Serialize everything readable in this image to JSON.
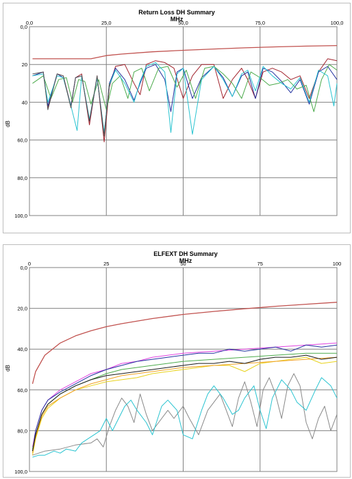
{
  "chart_data": [
    {
      "type": "line",
      "title": "Return Loss DH Summary",
      "xlabel": "MHz",
      "ylabel": "dB",
      "x_ticks": [
        "0,0",
        "25,0",
        "50,0",
        "75,0",
        "100,0"
      ],
      "y_ticks": [
        "0,0",
        "20",
        "40",
        "60,0",
        "80,0",
        "100,0"
      ],
      "xlim": [
        0,
        100
      ],
      "ylim": [
        0,
        100
      ],
      "x_axis_position": "top",
      "y_inverted": true,
      "grid": true,
      "limit": {
        "name": "limit",
        "color": "#c0504d",
        "x": [
          1,
          10,
          20,
          25,
          30,
          40,
          50,
          60,
          70,
          80,
          90,
          100
        ],
        "y": [
          17,
          17,
          17,
          15.3,
          14.5,
          13.3,
          12.5,
          11.8,
          11.2,
          10.7,
          10.3,
          10
        ]
      },
      "series": [
        {
          "color": "#a0202a",
          "x": [
            1,
            4.5,
            6,
            9,
            11,
            13.5,
            15,
            17,
            19.5,
            22,
            24.3,
            26,
            28,
            31,
            34,
            36,
            38,
            41,
            44,
            47,
            50,
            53,
            56,
            60,
            63,
            66,
            69,
            71,
            73.5,
            76,
            79,
            82,
            85,
            88,
            91,
            94,
            97,
            100
          ],
          "y": [
            26,
            24,
            43,
            25,
            26,
            42,
            27,
            25,
            52,
            26,
            61,
            32,
            21,
            20,
            30,
            36,
            20,
            18,
            19,
            22,
            38,
            26,
            20,
            20,
            38,
            28,
            22,
            28,
            38,
            24,
            22,
            24,
            28,
            26,
            38,
            24,
            17,
            18
          ]
        },
        {
          "color": "#1f2f9e",
          "x": [
            1,
            4.5,
            6,
            9,
            11,
            13.5,
            15,
            17,
            19.5,
            22,
            24.3,
            26,
            28,
            31,
            34,
            36,
            38,
            41,
            44,
            46,
            48,
            50,
            53,
            56,
            60,
            63,
            66,
            69,
            71,
            73.5,
            76,
            79,
            82,
            85,
            88,
            91,
            94,
            97,
            100
          ],
          "y": [
            26,
            24,
            42,
            25,
            27,
            42,
            27,
            26,
            50,
            27,
            57,
            30,
            22,
            28,
            39,
            30,
            22,
            20,
            28,
            45,
            24,
            22,
            38,
            27,
            21,
            27,
            37,
            26,
            24,
            38,
            22,
            24,
            29,
            35,
            28,
            41,
            24,
            21,
            28
          ]
        },
        {
          "color": "#4aaa4a",
          "x": [
            1,
            4.5,
            7,
            9.5,
            12,
            14,
            16,
            18,
            20,
            22.5,
            25,
            27,
            29.5,
            32,
            34,
            36.5,
            39,
            42,
            45,
            48,
            51,
            54,
            57,
            60,
            63,
            66,
            69,
            72,
            75,
            78,
            81,
            84,
            87,
            90,
            92.5,
            95,
            97.5,
            100
          ],
          "y": [
            30,
            26,
            38,
            28,
            27,
            40,
            28,
            29,
            41,
            28,
            44,
            30,
            26,
            38,
            24,
            22,
            34,
            22,
            21,
            32,
            23,
            38,
            22,
            21,
            25,
            30,
            38,
            24,
            27,
            31,
            30,
            28,
            33,
            31,
            45,
            28,
            20,
            23
          ]
        },
        {
          "color": "#27c3d0",
          "x": [
            1,
            4.5,
            6,
            9,
            11,
            13.5,
            15.5,
            17,
            19.5,
            22,
            24.3,
            26,
            28,
            31,
            34,
            36,
            38,
            41,
            44,
            46,
            48,
            50,
            53,
            56,
            60,
            63,
            66,
            69,
            71,
            73.5,
            76,
            79,
            82,
            85,
            88,
            91,
            94,
            97,
            99,
            100
          ],
          "y": [
            26,
            25,
            40,
            26,
            27,
            42,
            55,
            26,
            49,
            27,
            56,
            31,
            23,
            30,
            40,
            29,
            21,
            19,
            24,
            56,
            25,
            22,
            57,
            28,
            21,
            28,
            37,
            25,
            23,
            34,
            21,
            26,
            30,
            33,
            27,
            40,
            23,
            26,
            42,
            30
          ]
        },
        {
          "color": "#555555",
          "x": [
            1,
            4.5,
            6,
            9,
            11,
            13.5,
            15,
            17,
            19.5,
            22,
            24.3,
            26
          ],
          "y": [
            25,
            24,
            44,
            25,
            26,
            43,
            27,
            26,
            50,
            26,
            58,
            30
          ]
        }
      ]
    },
    {
      "type": "line",
      "title": "ELFEXT DH Summary",
      "xlabel": "MHz",
      "ylabel": "dB",
      "x_ticks": [
        "0",
        "25",
        "50",
        "75",
        "100"
      ],
      "y_ticks": [
        "0,0",
        "20,0",
        "40,0",
        "60,0",
        "80,0",
        "100,0"
      ],
      "xlim": [
        0,
        100
      ],
      "ylim": [
        0,
        100
      ],
      "x_axis_position": "top",
      "y_inverted": true,
      "grid": true,
      "limit": {
        "name": "limit",
        "color": "#c0504d",
        "x": [
          1,
          2,
          5,
          10,
          15,
          20,
          25,
          30,
          40,
          50,
          60,
          70,
          80,
          90,
          100
        ],
        "y": [
          57,
          51,
          43,
          37,
          33.5,
          31,
          29,
          27.5,
          25,
          23,
          21.5,
          20.2,
          19,
          18,
          17
        ]
      },
      "series": [
        {
          "color": "#e040e0",
          "x": [
            1,
            2,
            4,
            6,
            10,
            15,
            20,
            25,
            30,
            35,
            40,
            50,
            60,
            70,
            80,
            90,
            100
          ],
          "y": [
            88,
            80,
            70,
            65,
            60,
            56,
            52,
            50,
            47,
            46,
            44,
            42,
            41,
            40,
            39,
            38,
            37
          ]
        },
        {
          "color": "#1f2f9e",
          "x": [
            1,
            2,
            4,
            6,
            10,
            15,
            20,
            25,
            30,
            35,
            40,
            45,
            50,
            55,
            60,
            65,
            70,
            75,
            80,
            85,
            90,
            95,
            100
          ],
          "y": [
            90,
            80,
            70,
            65,
            61,
            57,
            53,
            50,
            48,
            46,
            45,
            44,
            43,
            42,
            42,
            40,
            41,
            40,
            39,
            41,
            38,
            39,
            38
          ]
        },
        {
          "color": "#4aaa4a",
          "x": [
            1,
            2,
            4,
            6,
            10,
            15,
            20,
            25,
            30,
            35,
            40,
            50,
            60,
            70,
            80,
            90,
            100
          ],
          "y": [
            89,
            82,
            72,
            67,
            62,
            58,
            55,
            52,
            50,
            49,
            48,
            46,
            45,
            44,
            43,
            42,
            42
          ]
        },
        {
          "color": "#e8d21a",
          "x": [
            1,
            2,
            4,
            6,
            10,
            15,
            20,
            25,
            30,
            35,
            40,
            45,
            50,
            55,
            60,
            65,
            70,
            75,
            80,
            85,
            90,
            95,
            100
          ],
          "y": [
            92,
            84,
            74,
            69,
            64,
            60,
            58,
            56,
            55,
            54,
            52,
            51,
            50,
            49,
            48,
            48,
            51,
            47,
            46,
            45,
            44,
            47,
            46
          ]
        },
        {
          "color": "#f0a020",
          "x": [
            1,
            2,
            4,
            6,
            10,
            15,
            20,
            25,
            30,
            35,
            40,
            50,
            60,
            70,
            80,
            90,
            100
          ],
          "y": [
            91,
            83,
            73,
            68,
            64,
            60,
            57,
            55,
            53,
            52,
            51,
            49,
            48,
            47,
            46,
            45,
            44
          ]
        },
        {
          "color": "#1a1a1a",
          "x": [
            1,
            2,
            4,
            6,
            10,
            15,
            20,
            25,
            30,
            35,
            40,
            45,
            50,
            55,
            60,
            65,
            70,
            75,
            80,
            85,
            90,
            95,
            100
          ],
          "y": [
            90,
            82,
            72,
            67,
            62,
            58,
            55,
            53,
            52,
            51,
            50,
            49,
            48,
            47,
            47,
            46,
            47,
            45,
            44,
            44,
            43,
            45,
            44
          ]
        },
        {
          "color": "#888888",
          "x": [
            1,
            5,
            10,
            15,
            20,
            22,
            24,
            26,
            28,
            30,
            32,
            34,
            36,
            38,
            40,
            42,
            45,
            47,
            50,
            52,
            55,
            58,
            62,
            64,
            66,
            68,
            70,
            72,
            74,
            76,
            78,
            80,
            82,
            84,
            86,
            88,
            90,
            92,
            94,
            96,
            98,
            100
          ],
          "y": [
            92,
            90,
            89,
            87,
            86,
            84,
            88,
            78,
            70,
            64,
            68,
            76,
            62,
            72,
            80,
            76,
            70,
            74,
            68,
            74,
            82,
            70,
            62,
            70,
            78,
            64,
            56,
            66,
            78,
            60,
            54,
            62,
            74,
            58,
            52,
            58,
            76,
            84,
            74,
            68,
            80,
            72
          ]
        },
        {
          "color": "#27c3d0",
          "x": [
            1,
            3,
            5,
            8,
            10,
            12,
            15,
            17,
            19,
            21,
            23,
            25,
            27,
            29,
            31,
            33,
            35,
            38,
            40,
            43,
            45,
            48,
            50,
            53,
            56,
            58,
            60,
            63,
            66,
            68,
            70,
            73,
            75,
            77,
            79,
            82,
            85,
            87,
            90,
            93,
            95,
            98,
            100
          ],
          "y": [
            93,
            92,
            92,
            90,
            91,
            89,
            90,
            86,
            84,
            82,
            80,
            74,
            80,
            74,
            68,
            65,
            70,
            76,
            82,
            68,
            65,
            70,
            82,
            84,
            70,
            62,
            58,
            64,
            72,
            70,
            64,
            58,
            70,
            79,
            64,
            55,
            60,
            66,
            70,
            60,
            54,
            58,
            64
          ]
        }
      ]
    }
  ]
}
